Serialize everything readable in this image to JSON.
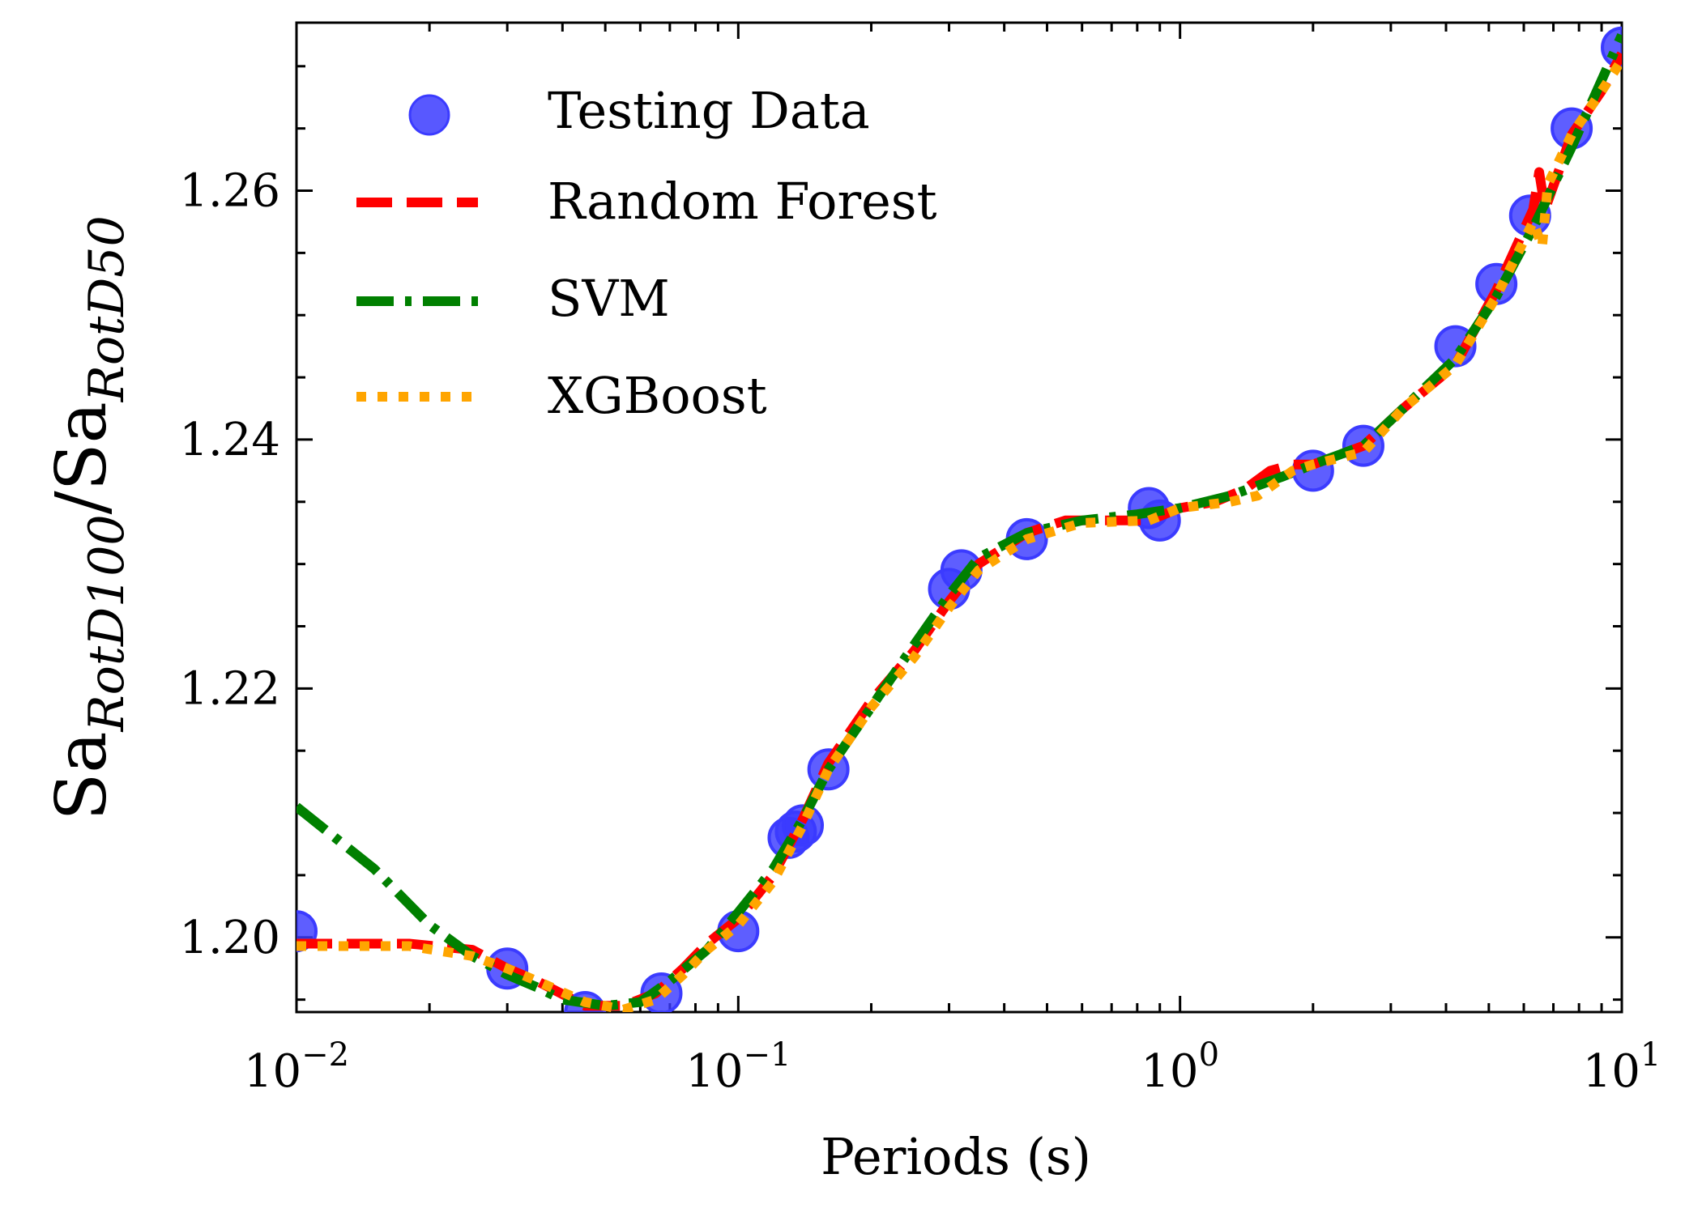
{
  "chart_data": {
    "type": "line",
    "x_scale": "log",
    "xlim": [
      0.01,
      10
    ],
    "ylim": [
      1.194,
      1.2735
    ],
    "xlabel": "Periods (s)",
    "ylabel_base": "Sa",
    "ylabel_num_sub": "RotD100",
    "ylabel_sep": "/",
    "ylabel_den_sub": "RotD50",
    "x_ticks": [
      {
        "value": 0.01,
        "base": "10",
        "exp": "−2"
      },
      {
        "value": 0.1,
        "base": "10",
        "exp": "−1"
      },
      {
        "value": 1,
        "base": "10",
        "exp": "0"
      },
      {
        "value": 10,
        "base": "10",
        "exp": "1"
      }
    ],
    "y_ticks": [
      {
        "value": 1.2,
        "label": "1.20"
      },
      {
        "value": 1.22,
        "label": "1.22"
      },
      {
        "value": 1.24,
        "label": "1.24"
      },
      {
        "value": 1.26,
        "label": "1.26"
      }
    ],
    "y_minor_step": 0.005,
    "legend_position": "upper-left",
    "series": [
      {
        "name": "Testing Data",
        "kind": "scatter",
        "color": "#3b3bff",
        "x": [
          0.01,
          0.03,
          0.045,
          0.067,
          0.1,
          0.13,
          0.135,
          0.14,
          0.16,
          0.3,
          0.32,
          0.45,
          0.85,
          0.9,
          2.0,
          2.6,
          4.2,
          5.2,
          6.2,
          7.7,
          10.0
        ],
        "y": [
          1.2005,
          1.1975,
          1.194,
          1.1955,
          1.2005,
          1.208,
          1.2085,
          1.209,
          1.2135,
          1.228,
          1.2295,
          1.232,
          1.2345,
          1.2335,
          1.2375,
          1.2395,
          1.2475,
          1.2525,
          1.258,
          1.265,
          1.2715
        ]
      },
      {
        "name": "Random Forest",
        "kind": "line",
        "dash": "dashed",
        "color": "#ff0000",
        "x": [
          0.01,
          0.018,
          0.025,
          0.03,
          0.035,
          0.045,
          0.055,
          0.065,
          0.075,
          0.085,
          0.1,
          0.12,
          0.14,
          0.16,
          0.2,
          0.25,
          0.3,
          0.35,
          0.45,
          0.55,
          0.7,
          0.85,
          1.0,
          1.2,
          1.4,
          1.6,
          1.8,
          2.0,
          2.6,
          3.2,
          4.2,
          5.2,
          6.3,
          6.5,
          6.7,
          7.7,
          9.0,
          10.0
        ],
        "y": [
          1.1995,
          1.1995,
          1.199,
          1.1975,
          1.1965,
          1.1945,
          1.1945,
          1.1955,
          1.1975,
          1.1995,
          1.2015,
          1.205,
          1.2095,
          1.214,
          1.219,
          1.223,
          1.227,
          1.23,
          1.2325,
          1.2335,
          1.2335,
          1.2335,
          1.2345,
          1.235,
          1.236,
          1.2375,
          1.238,
          1.238,
          1.2395,
          1.2425,
          1.246,
          1.252,
          1.2585,
          1.2615,
          1.2585,
          1.2645,
          1.268,
          1.271
        ]
      },
      {
        "name": "SVM",
        "kind": "line",
        "dash": "dashdot",
        "color": "#008000",
        "x": [
          0.01,
          0.015,
          0.02,
          0.025,
          0.03,
          0.035,
          0.04,
          0.05,
          0.06,
          0.07,
          0.085,
          0.1,
          0.12,
          0.14,
          0.16,
          0.2,
          0.25,
          0.3,
          0.35,
          0.45,
          0.6,
          0.8,
          1.0,
          1.3,
          1.7,
          2.0,
          2.6,
          3.2,
          4.2,
          5.2,
          6.3,
          7.7,
          10.0
        ],
        "y": [
          1.2105,
          1.2055,
          1.201,
          1.1985,
          1.197,
          1.196,
          1.195,
          1.1945,
          1.1948,
          1.1965,
          1.199,
          1.202,
          1.2055,
          1.2095,
          1.2135,
          1.2185,
          1.2235,
          1.2275,
          1.2305,
          1.2325,
          1.2335,
          1.234,
          1.2345,
          1.2355,
          1.237,
          1.238,
          1.2395,
          1.2425,
          1.2465,
          1.2515,
          1.257,
          1.2635,
          1.2725
        ]
      },
      {
        "name": "XGBoost",
        "kind": "line",
        "dash": "dotted",
        "color": "#ffa500",
        "x": [
          0.01,
          0.018,
          0.025,
          0.03,
          0.035,
          0.045,
          0.055,
          0.065,
          0.075,
          0.085,
          0.1,
          0.12,
          0.14,
          0.16,
          0.2,
          0.25,
          0.3,
          0.35,
          0.45,
          0.6,
          0.85,
          1.0,
          1.3,
          1.5,
          1.8,
          2.0,
          2.6,
          3.2,
          4.2,
          5.2,
          6.3,
          6.6,
          6.8,
          7.7,
          9.0,
          10.0
        ],
        "y": [
          1.1993,
          1.1993,
          1.1985,
          1.1975,
          1.1965,
          1.1948,
          1.1942,
          1.195,
          1.197,
          1.199,
          1.201,
          1.2045,
          1.209,
          1.2135,
          1.2185,
          1.2225,
          1.2265,
          1.2295,
          1.232,
          1.2333,
          1.2335,
          1.2345,
          1.235,
          1.2355,
          1.2375,
          1.238,
          1.239,
          1.2425,
          1.246,
          1.2515,
          1.2575,
          1.2555,
          1.2605,
          1.2645,
          1.268,
          1.2705
        ]
      }
    ]
  }
}
